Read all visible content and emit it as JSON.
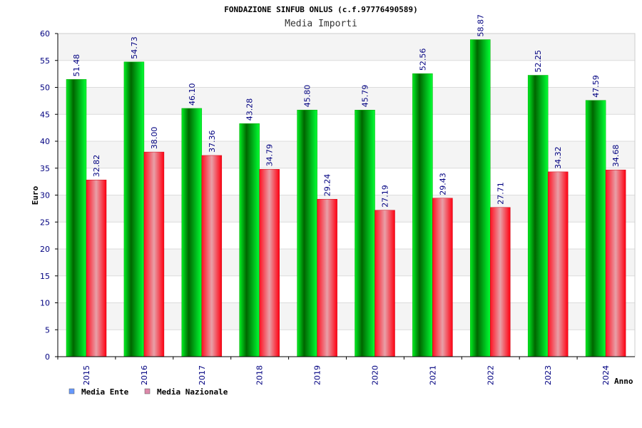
{
  "chart_data": {
    "type": "bar",
    "title": "FONDAZIONE SINFUB ONLUS (c.f.97776490589)",
    "subtitle": "Media Importi",
    "xlabel": "Anno",
    "ylabel": "Euro",
    "ylim": [
      0,
      60
    ],
    "yticks": [
      0,
      5,
      10,
      15,
      20,
      25,
      30,
      35,
      40,
      45,
      50,
      55,
      60
    ],
    "grid": true,
    "legend_position": "bottom-left",
    "categories": [
      "2015",
      "2016",
      "2017",
      "2018",
      "2019",
      "2020",
      "2021",
      "2022",
      "2023",
      "2024"
    ],
    "series": [
      {
        "name": "Media Ente",
        "values": [
          51.48,
          54.73,
          46.1,
          43.28,
          45.8,
          45.79,
          52.56,
          58.87,
          52.25,
          47.59
        ],
        "labels": [
          "51.48",
          "54.73",
          "46.10",
          "43.28",
          "45.80",
          "45.79",
          "52.56",
          "58.87",
          "52.25",
          "47.59"
        ],
        "color": "#00cc00",
        "legend_color": "#6699ff"
      },
      {
        "name": "Media Nazionale",
        "values": [
          32.82,
          38.0,
          37.36,
          34.79,
          29.24,
          27.19,
          29.43,
          27.71,
          34.32,
          34.68
        ],
        "labels": [
          "32.82",
          "38.00",
          "37.36",
          "34.79",
          "29.24",
          "27.19",
          "29.43",
          "27.71",
          "34.32",
          "34.68"
        ],
        "color": "#ee1122",
        "legend_color": "#dd88aa"
      }
    ]
  }
}
